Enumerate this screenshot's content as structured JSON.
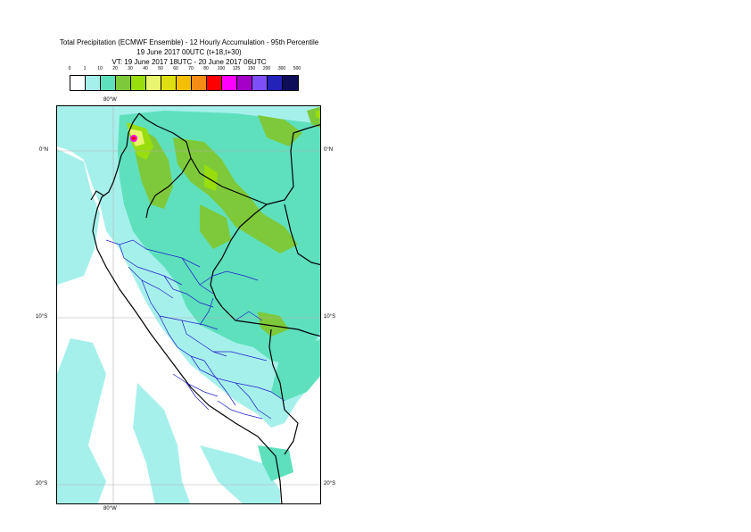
{
  "header": {
    "title_line1": "Total Precipitation (ECMWF Ensemble) - 12 Hourly Accumulation - 95th Percentile",
    "title_line2": "19 June 2017 00UTC (t+18,t+30)",
    "title_line3": "VT: 19 June 2017 18UTC - 20 June 2017 06UTC"
  },
  "legend": {
    "ticks": [
      "0",
      "1",
      "10",
      "20",
      "30",
      "40",
      "50",
      "60",
      "70",
      "80",
      "100",
      "125",
      "150",
      "200",
      "300",
      "500"
    ],
    "colors": [
      "#ffffff",
      "#a6f0ec",
      "#5ee0bd",
      "#7ec93a",
      "#99dd0f",
      "#e8f56e",
      "#dede13",
      "#f5bf00",
      "#f68c15",
      "#ff0000",
      "#ff00ff",
      "#a500c8",
      "#7e4ff7",
      "#2323b9",
      "#0d0d5a"
    ]
  },
  "map": {
    "lon_label_top": "80°W",
    "lon_label_bottom": "80°W",
    "lat_labels_left": [
      "0°N",
      "10°S",
      "20°S"
    ],
    "lat_labels_right": [
      "0°N",
      "10°S",
      "20°S"
    ],
    "colors": {
      "light_cyan": "#a6f0ec",
      "teal": "#5ee0bd",
      "green": "#7ec93a",
      "yellow_green": "#99dd0f",
      "yellow": "#e8f56e",
      "red": "#ff0000",
      "magenta": "#ff00ff",
      "border": "#000000",
      "admin": "#1f1fc8",
      "grid": "#b0b0b0"
    }
  }
}
